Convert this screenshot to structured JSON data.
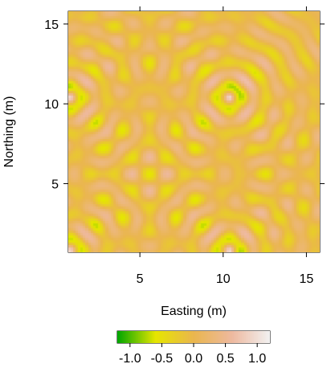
{
  "chart_data": {
    "type": "heatmap",
    "title": "",
    "xlabel": "Easting (m)",
    "ylabel": "Northing (m)",
    "xlim": [
      0.7,
      15.8
    ],
    "ylim": [
      0.7,
      15.8
    ],
    "xticks": [
      5,
      10,
      15
    ],
    "yticks": [
      5,
      10,
      15
    ],
    "grid": false,
    "field": {
      "description_formula": "cos(distance to source point)",
      "sources": [
        {
          "x": 10.4,
          "y": 10.4
        },
        {
          "x": 0.8,
          "y": 10.4
        },
        {
          "x": 10.4,
          "y": 0.8
        },
        {
          "x": 0.8,
          "y": 0.8
        }
      ],
      "x_cells": 100,
      "y_cells": 100
    },
    "colorkey": {
      "placement": "bottom",
      "range": [
        -1.2,
        1.2
      ],
      "ticks": [
        -1.0,
        -0.5,
        0.0,
        0.5,
        1.0
      ],
      "tick_labels": [
        "-1.0",
        "-0.5",
        "0.0",
        "0.5",
        "1.0"
      ],
      "colors": [
        "#00A600",
        "#E6E600",
        "#EAB64E",
        "#EEB99F",
        "#F2F2F2"
      ]
    }
  }
}
